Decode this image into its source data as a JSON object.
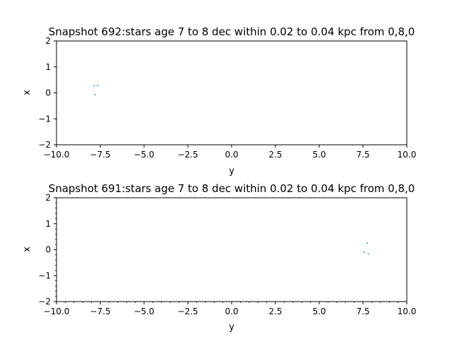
{
  "chart_data": [
    {
      "type": "scatter",
      "title": "Snapshot 692:stars age 7 to 8 dec within 0.02 to 0.04 kpc from 0,8,0",
      "xlabel": "y",
      "ylabel": "x",
      "xlim": [
        -10,
        10
      ],
      "ylim": [
        -2,
        2
      ],
      "xticks": [
        "−10.0",
        "−7.5",
        "−5.0",
        "−2.5",
        "0.0",
        "2.5",
        "5.0",
        "7.5",
        "10.0"
      ],
      "yticks": [
        "−2",
        "−1",
        "0",
        "1",
        "2"
      ],
      "minor_ticks": false,
      "grid": false,
      "marker_color": "#1f77b4",
      "points": [
        {
          "x": -7.85,
          "y": 0.28
        },
        {
          "x": -7.65,
          "y": 0.28
        },
        {
          "x": -7.8,
          "y": -0.07
        }
      ]
    },
    {
      "type": "scatter",
      "title": "Snapshot 691:stars age 7 to 8 dec within 0.02 to 0.04 kpc from 0,8,0",
      "xlabel": "y",
      "ylabel": "x",
      "xlim": [
        -10,
        10
      ],
      "ylim": [
        -2,
        2
      ],
      "xticks": [
        "−10.0",
        "−7.5",
        "−5.0",
        "−2.5",
        "0.0",
        "2.5",
        "5.0",
        "7.5",
        "10.0"
      ],
      "yticks": [
        "−2",
        "−1",
        "0",
        "1",
        "2"
      ],
      "minor_ticks": true,
      "grid": false,
      "marker_color": "#1f77b4",
      "points": [
        {
          "x": 7.75,
          "y": 0.25
        },
        {
          "x": 7.55,
          "y": -0.1
        },
        {
          "x": 7.8,
          "y": -0.15
        }
      ]
    }
  ]
}
